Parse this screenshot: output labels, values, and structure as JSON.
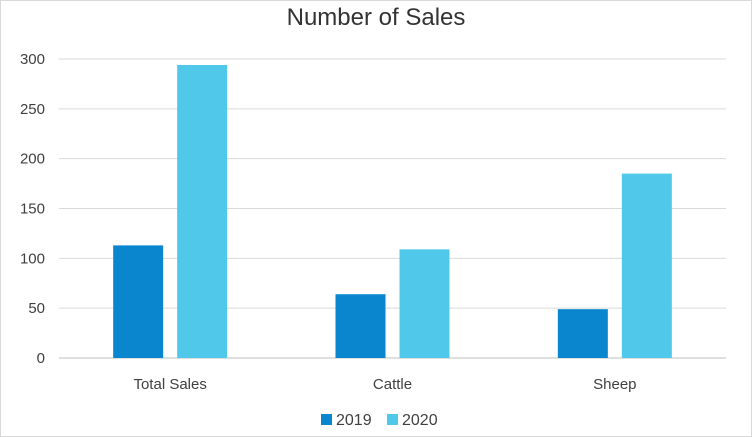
{
  "chart_data": {
    "type": "bar",
    "title": "Number of Sales",
    "xlabel": "",
    "ylabel": "",
    "categories": [
      "Total Sales",
      "Cattle",
      "Sheep"
    ],
    "series": [
      {
        "name": "2019",
        "values": [
          113,
          64,
          49
        ],
        "color": "#0a86cf"
      },
      {
        "name": "2020",
        "values": [
          294,
          109,
          185
        ],
        "color": "#4fc8ea"
      }
    ],
    "ylim": [
      0,
      300
    ],
    "yticks": [
      0,
      50,
      100,
      150,
      200,
      250,
      300
    ],
    "grid": true,
    "legend_position": "bottom"
  }
}
